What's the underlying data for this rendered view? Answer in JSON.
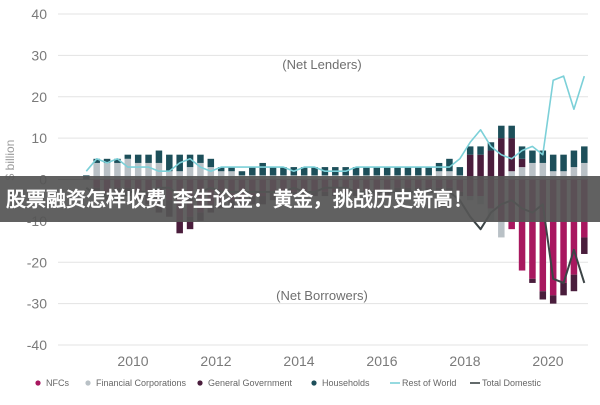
{
  "overlay": {
    "text": "股票融资怎样收费 李生论金：黄金，挑战历史新高！"
  },
  "chart_data": {
    "type": "bar",
    "ylabel": "$ billion",
    "ylim": [
      -40,
      40
    ],
    "yticks": [
      "40",
      "30",
      "20",
      "10",
      "0",
      "-10",
      "-20",
      "-30",
      "-40"
    ],
    "xticks": [
      "2010",
      "2012",
      "2014",
      "2016",
      "2018",
      "2020"
    ],
    "grid": true,
    "legend_position": "bottom",
    "annotations": {
      "top": "(Net Lenders)",
      "bottom": "(Net Borrowers)"
    },
    "colors": {
      "NFCs": "#a8175f",
      "Financial Corporations": "#b9c1c6",
      "General Government": "#4a1d3c",
      "Households": "#1d4f5a",
      "Rest of World": "#7cd0d8",
      "Total Domestic": "#3c4446"
    },
    "legend": [
      "NFCs",
      "Financial Corporations",
      "General Government",
      "Households",
      "Rest of World",
      "Total Domestic"
    ],
    "categories": [
      "2008Q4",
      "2009Q1",
      "2009Q2",
      "2009Q3",
      "2009Q4",
      "2010Q1",
      "2010Q2",
      "2010Q3",
      "2010Q4",
      "2011Q1",
      "2011Q2",
      "2011Q3",
      "2011Q4",
      "2012Q1",
      "2012Q2",
      "2012Q3",
      "2012Q4",
      "2013Q1",
      "2013Q2",
      "2013Q3",
      "2013Q4",
      "2014Q1",
      "2014Q2",
      "2014Q3",
      "2014Q4",
      "2015Q1",
      "2015Q2",
      "2015Q3",
      "2015Q4",
      "2016Q1",
      "2016Q2",
      "2016Q3",
      "2016Q4",
      "2017Q1",
      "2017Q2",
      "2017Q3",
      "2017Q4",
      "2018Q1",
      "2018Q2",
      "2018Q3",
      "2018Q4",
      "2019Q1",
      "2019Q2",
      "2019Q3",
      "2019Q4",
      "2020Q1",
      "2020Q2",
      "2020Q3",
      "2020Q4"
    ],
    "series": [
      {
        "name": "NFCs",
        "kind": "bar",
        "values": [
          0,
          -2,
          -3,
          -2,
          -2,
          -3,
          -3,
          -4,
          -5,
          -10,
          -9,
          -8,
          -6,
          -5,
          -5,
          -5,
          -4,
          -4,
          -3,
          -3,
          -3,
          -3,
          -3,
          -3,
          -3,
          -3,
          -3,
          -3,
          -3,
          -3,
          -2,
          -2,
          -2,
          -2,
          -2,
          -2,
          -3,
          -4,
          -4,
          -7,
          -10,
          -12,
          -22,
          -24,
          -27,
          -28,
          -25,
          -23,
          -14
        ]
      },
      {
        "name": "Financial Corporations",
        "kind": "bar",
        "values": [
          0,
          4,
          4,
          4,
          5,
          4,
          4,
          4,
          2,
          2,
          3,
          4,
          3,
          2,
          2,
          1,
          1,
          1,
          1,
          1,
          1,
          1,
          1,
          1,
          1,
          1,
          1,
          1,
          1,
          1,
          1,
          1,
          1,
          1,
          2,
          2,
          1,
          -1,
          -2,
          -3,
          -4,
          2,
          3,
          4,
          4,
          2,
          2,
          3,
          4
        ]
      },
      {
        "name": "General Government",
        "kind": "bar",
        "values": [
          0,
          -1,
          -2,
          -2,
          -2,
          -2,
          -3,
          -4,
          -4,
          -3,
          -3,
          -2,
          -2,
          -2,
          -2,
          -2,
          -2,
          -2,
          -2,
          -2,
          -1,
          -1,
          -1,
          -1,
          -1,
          -1,
          -1,
          -1,
          -1,
          -1,
          -1,
          -1,
          -1,
          -1,
          -1,
          -1,
          -1,
          6,
          6,
          7,
          10,
          8,
          2,
          -1,
          -2,
          -2,
          -3,
          -4,
          -4
        ]
      },
      {
        "name": "Households",
        "kind": "bar",
        "values": [
          1,
          1,
          1,
          1,
          1,
          2,
          2,
          3,
          4,
          4,
          3,
          2,
          2,
          1,
          1,
          1,
          2,
          3,
          2,
          2,
          2,
          2,
          2,
          2,
          2,
          2,
          2,
          2,
          2,
          2,
          2,
          2,
          2,
          2,
          2,
          3,
          2,
          2,
          2,
          2,
          3,
          3,
          3,
          3,
          3,
          4,
          4,
          4,
          4
        ]
      },
      {
        "name": "Rest of World",
        "kind": "line",
        "values": [
          2,
          5,
          4,
          5,
          3,
          3,
          3,
          2,
          2,
          4,
          5,
          3,
          2,
          3,
          3,
          3,
          3,
          3,
          3,
          3,
          2,
          3,
          3,
          2,
          2,
          2,
          3,
          3,
          3,
          3,
          3,
          3,
          3,
          3,
          3,
          3,
          5,
          9,
          12,
          8,
          6,
          5,
          7,
          8,
          6,
          24,
          25,
          17,
          25
        ]
      },
      {
        "name": "Total Domestic",
        "kind": "line",
        "values": [
          -2,
          -4,
          -4,
          -5,
          -3,
          -3,
          -3,
          -2,
          -2,
          -4,
          -5,
          -3,
          -2,
          -3,
          -3,
          -3,
          -3,
          -3,
          -3,
          -3,
          -2,
          -3,
          -3,
          -2,
          -2,
          -2,
          -3,
          -3,
          -3,
          -3,
          -3,
          -3,
          -3,
          -3,
          -3,
          -3,
          -5,
          -9,
          -12,
          -8,
          -6,
          -5,
          -7,
          -8,
          -6,
          -24,
          -25,
          -17,
          -25
        ]
      }
    ]
  }
}
